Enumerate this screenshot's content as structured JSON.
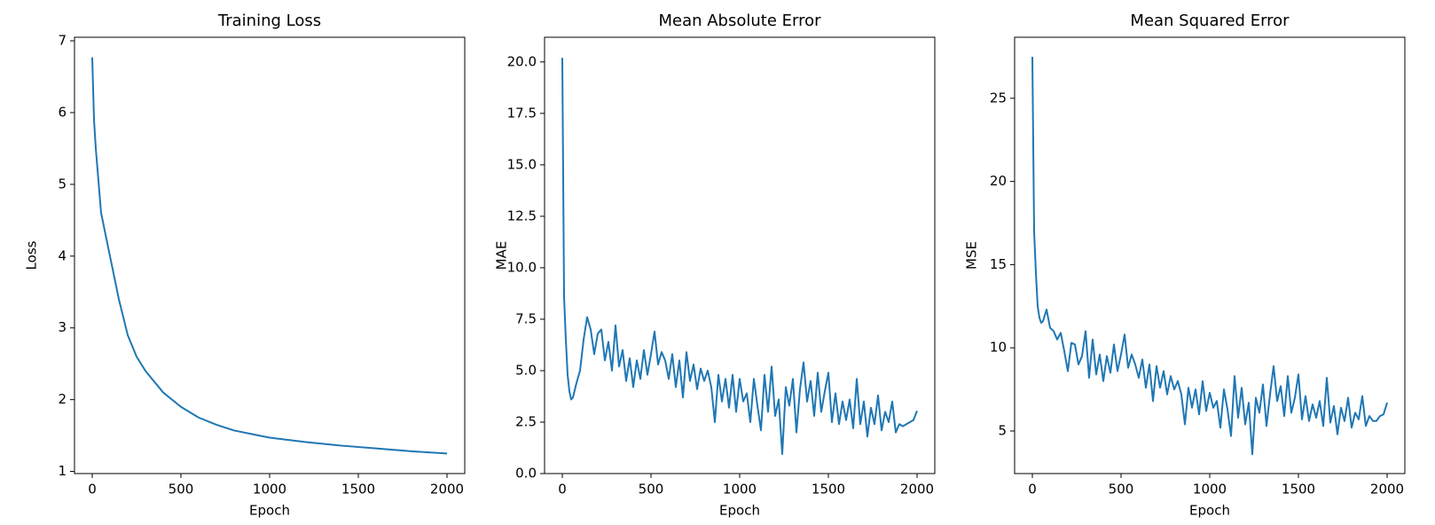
{
  "chart_data": [
    {
      "type": "line",
      "title": "Training Loss",
      "xlabel": "Epoch",
      "ylabel": "Loss",
      "color": "#1f77b4",
      "x": [
        0,
        10,
        20,
        50,
        100,
        150,
        200,
        250,
        300,
        400,
        500,
        600,
        700,
        800,
        900,
        1000,
        1200,
        1400,
        1600,
        1800,
        2000
      ],
      "values": [
        6.77,
        5.9,
        5.5,
        4.6,
        4.0,
        3.4,
        2.9,
        2.6,
        2.4,
        2.1,
        1.9,
        1.75,
        1.65,
        1.57,
        1.52,
        1.47,
        1.41,
        1.36,
        1.32,
        1.28,
        1.25
      ],
      "xlim": [
        -100,
        2100
      ],
      "xticks": [
        0,
        500,
        1000,
        1500,
        2000
      ],
      "ylim": [
        0.97,
        7.05
      ],
      "yticks": [
        1,
        2,
        3,
        4,
        5,
        6,
        7
      ]
    },
    {
      "type": "line",
      "title": "Mean Absolute Error",
      "xlabel": "Epoch",
      "ylabel": "MAE",
      "color": "#1f77b4",
      "x": [
        0,
        10,
        20,
        30,
        40,
        50,
        60,
        80,
        100,
        120,
        140,
        160,
        180,
        200,
        220,
        240,
        260,
        280,
        300,
        320,
        340,
        360,
        380,
        400,
        420,
        440,
        460,
        480,
        500,
        520,
        540,
        560,
        580,
        600,
        620,
        640,
        660,
        680,
        700,
        720,
        740,
        760,
        780,
        800,
        820,
        840,
        860,
        880,
        900,
        920,
        940,
        960,
        980,
        1000,
        1020,
        1040,
        1060,
        1080,
        1100,
        1120,
        1140,
        1160,
        1180,
        1200,
        1220,
        1240,
        1260,
        1280,
        1300,
        1320,
        1340,
        1360,
        1380,
        1400,
        1420,
        1440,
        1460,
        1480,
        1500,
        1520,
        1540,
        1560,
        1580,
        1600,
        1620,
        1640,
        1660,
        1680,
        1700,
        1720,
        1740,
        1760,
        1780,
        1800,
        1820,
        1840,
        1860,
        1880,
        1900,
        1920,
        1940,
        1960,
        1980,
        2000
      ],
      "values": [
        20.2,
        8.6,
        6.5,
        4.8,
        4.0,
        3.6,
        3.7,
        4.4,
        5.0,
        6.5,
        7.6,
        7.0,
        5.8,
        6.8,
        7.0,
        5.5,
        6.4,
        5.0,
        7.2,
        5.2,
        6.0,
        4.5,
        5.6,
        4.2,
        5.5,
        4.6,
        6.0,
        4.8,
        5.8,
        6.9,
        5.3,
        5.9,
        5.5,
        4.6,
        5.8,
        4.2,
        5.5,
        3.7,
        5.9,
        4.5,
        5.3,
        4.1,
        5.1,
        4.5,
        5.0,
        4.2,
        2.5,
        4.8,
        3.5,
        4.6,
        3.2,
        4.8,
        3.0,
        4.6,
        3.5,
        3.9,
        2.5,
        4.6,
        3.3,
        2.1,
        4.8,
        3.0,
        5.2,
        2.8,
        3.6,
        0.95,
        4.2,
        3.3,
        4.6,
        2.0,
        4.1,
        5.4,
        3.5,
        4.5,
        2.8,
        4.9,
        3.0,
        4.0,
        4.9,
        2.5,
        3.9,
        2.4,
        3.5,
        2.6,
        3.6,
        2.2,
        4.6,
        2.4,
        3.5,
        1.8,
        3.2,
        2.4,
        3.8,
        2.1,
        3.0,
        2.5,
        3.5,
        2.0,
        2.4,
        2.3,
        2.4,
        2.5,
        2.6,
        3.05
      ],
      "xlim": [
        -100,
        2100
      ],
      "xticks": [
        0,
        500,
        1000,
        1500,
        2000
      ],
      "ylim": [
        0,
        21.2
      ],
      "yticks": [
        {
          "value": 0,
          "label": "0.0"
        },
        2.5,
        {
          "value": 5,
          "label": "5.0"
        },
        7.5,
        {
          "value": 10,
          "label": "10.0"
        },
        12.5,
        {
          "value": 15,
          "label": "15.0"
        },
        17.5,
        {
          "value": 20,
          "label": "20.0"
        }
      ]
    },
    {
      "type": "line",
      "title": "Mean Squared Error",
      "xlabel": "Epoch",
      "ylabel": "MSE",
      "color": "#1f77b4",
      "x": [
        0,
        10,
        20,
        30,
        40,
        50,
        60,
        80,
        100,
        120,
        140,
        160,
        180,
        200,
        220,
        240,
        260,
        280,
        300,
        320,
        340,
        360,
        380,
        400,
        420,
        440,
        460,
        480,
        500,
        520,
        540,
        560,
        580,
        600,
        620,
        640,
        660,
        680,
        700,
        720,
        740,
        760,
        780,
        800,
        820,
        840,
        860,
        880,
        900,
        920,
        940,
        960,
        980,
        1000,
        1020,
        1040,
        1060,
        1080,
        1100,
        1120,
        1140,
        1160,
        1180,
        1200,
        1220,
        1240,
        1260,
        1280,
        1300,
        1320,
        1340,
        1360,
        1380,
        1400,
        1420,
        1440,
        1460,
        1480,
        1500,
        1520,
        1540,
        1560,
        1580,
        1600,
        1620,
        1640,
        1660,
        1680,
        1700,
        1720,
        1740,
        1760,
        1780,
        1800,
        1820,
        1840,
        1860,
        1880,
        1900,
        1920,
        1940,
        1960,
        1980,
        2000
      ],
      "values": [
        27.5,
        17.0,
        14.5,
        12.5,
        11.8,
        11.5,
        11.6,
        12.3,
        11.2,
        11.0,
        10.5,
        10.9,
        9.8,
        8.6,
        10.3,
        10.2,
        9.0,
        9.5,
        11.0,
        8.2,
        10.5,
        8.4,
        9.6,
        8.0,
        9.5,
        8.5,
        10.2,
        8.6,
        9.6,
        10.8,
        8.8,
        9.6,
        9.0,
        8.2,
        9.3,
        7.6,
        9.0,
        6.8,
        8.9,
        7.6,
        8.6,
        7.2,
        8.3,
        7.5,
        8.0,
        7.2,
        5.4,
        7.6,
        6.4,
        7.5,
        6.0,
        8.0,
        6.2,
        7.3,
        6.4,
        6.8,
        5.2,
        7.5,
        6.3,
        4.7,
        8.3,
        5.8,
        7.6,
        5.4,
        6.7,
        3.6,
        7.0,
        6.1,
        7.8,
        5.3,
        7.2,
        8.9,
        6.8,
        7.7,
        5.9,
        8.3,
        6.1,
        7.0,
        8.4,
        5.7,
        7.1,
        5.6,
        6.6,
        5.8,
        6.8,
        5.3,
        8.2,
        5.5,
        6.5,
        4.8,
        6.4,
        5.6,
        7.0,
        5.2,
        6.1,
        5.7,
        7.1,
        5.3,
        5.9,
        5.6,
        5.6,
        5.9,
        6.0,
        6.7
      ],
      "xlim": [
        -100,
        2100
      ],
      "xticks": [
        0,
        500,
        1000,
        1500,
        2000
      ],
      "ylim": [
        2.44,
        28.67
      ],
      "yticks": [
        5,
        10,
        15,
        20,
        25
      ]
    }
  ]
}
